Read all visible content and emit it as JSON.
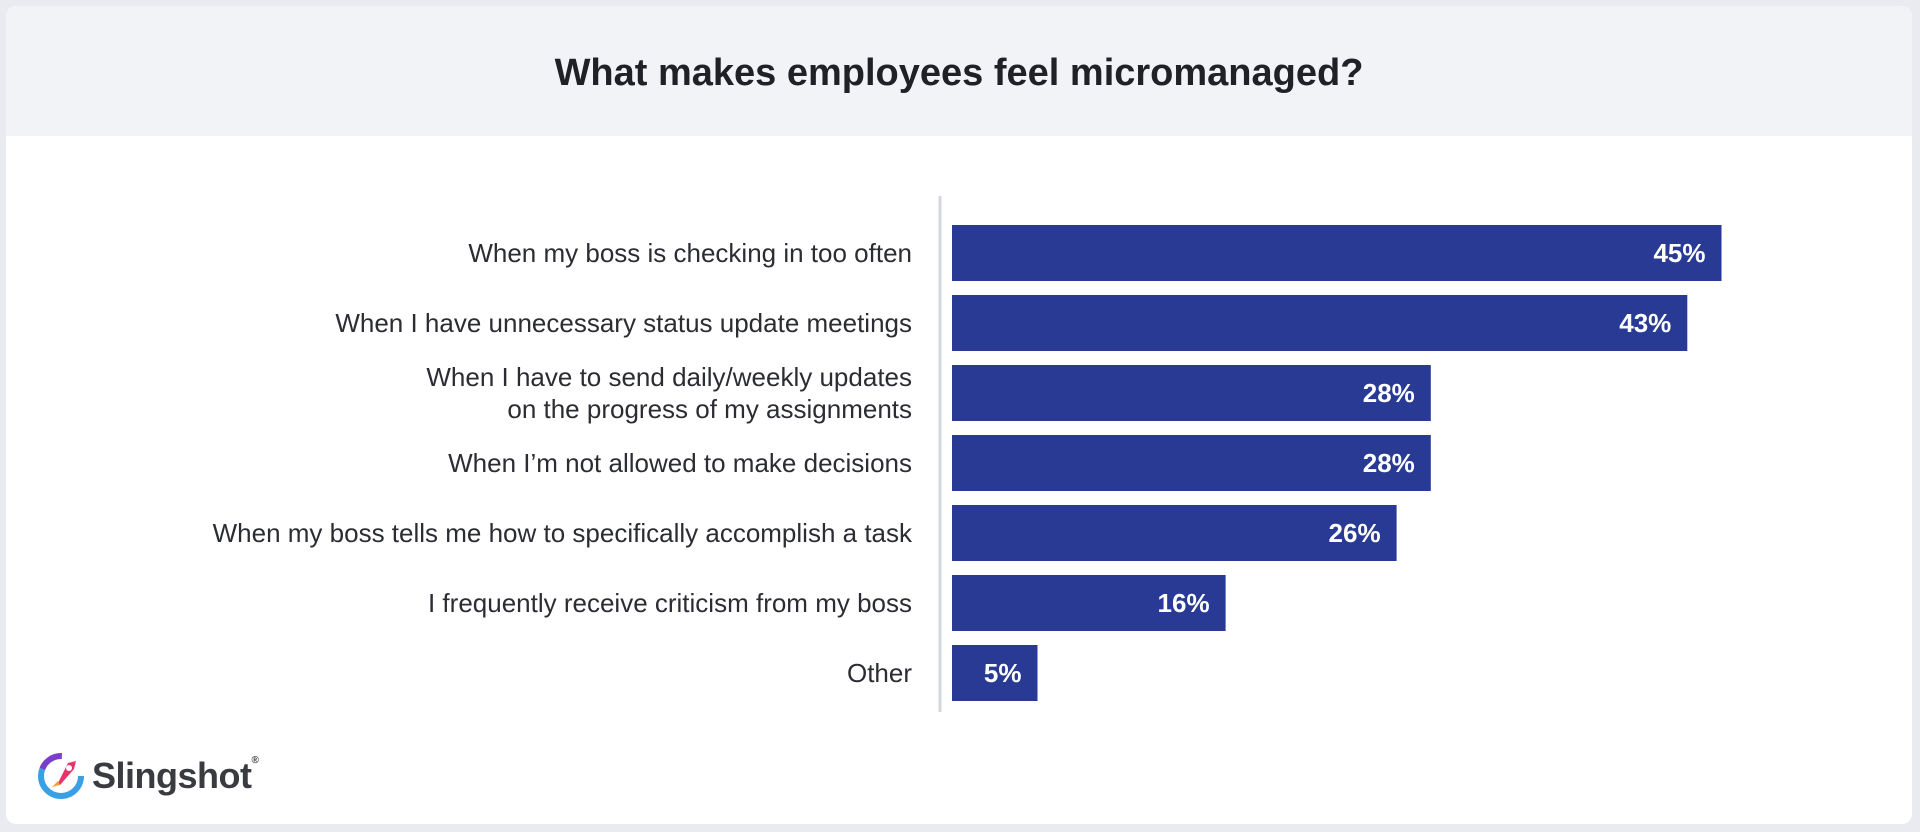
{
  "title": "What makes employees feel micromanaged?",
  "colors": {
    "bar": "#283A94",
    "axis": "#d5d7dc",
    "label": "#2b2d33"
  },
  "logo": {
    "text": "Slingshot",
    "mark": "rocket-logo-icon"
  },
  "chart_data": {
    "type": "bar",
    "orientation": "horizontal",
    "title": "What makes employees feel micromanaged?",
    "categories": [
      [
        "When my boss is checking in too often"
      ],
      [
        "When I have unnecessary status update meetings"
      ],
      [
        "When I have to send daily/weekly updates",
        "on the progress of my assignments"
      ],
      [
        "When I’m not allowed to make decisions"
      ],
      [
        "When my boss tells me how to specifically accomplish a task"
      ],
      [
        "I frequently receive criticism from my boss"
      ],
      [
        "Other"
      ]
    ],
    "values": [
      45,
      43,
      28,
      28,
      26,
      16,
      5
    ],
    "value_labels": [
      "45%",
      "43%",
      "28%",
      "28%",
      "26%",
      "16%",
      "5%"
    ],
    "unit": "%",
    "xlim": [
      0,
      50
    ],
    "grid": false,
    "xlabel": "",
    "ylabel": ""
  }
}
